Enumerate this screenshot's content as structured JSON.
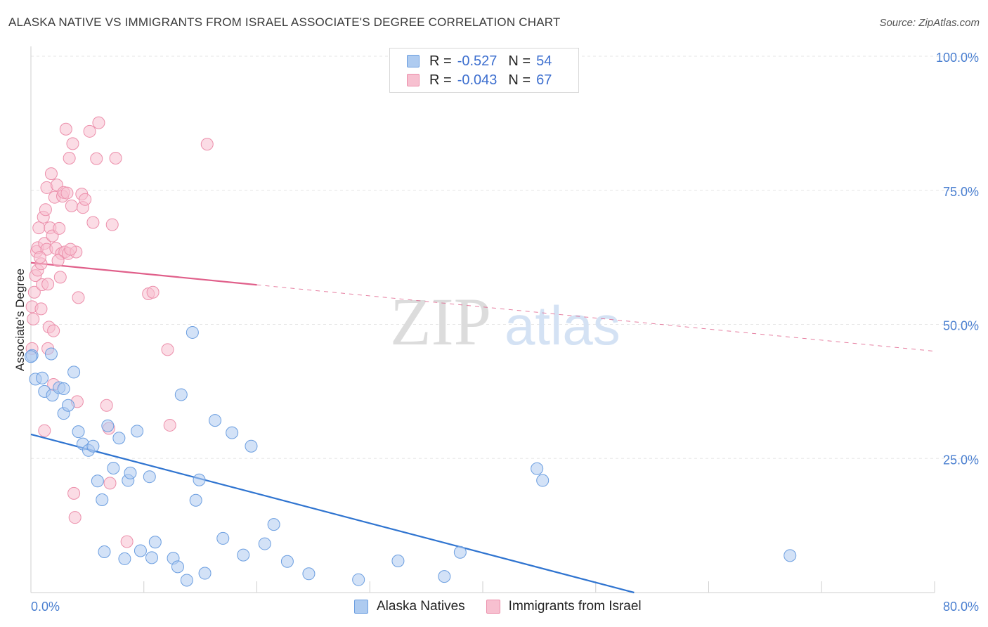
{
  "chart_title": "ALASKA NATIVE VS IMMIGRANTS FROM ISRAEL ASSOCIATE'S DEGREE CORRELATION CHART",
  "source": "Source: ZipAtlas.com",
  "watermark": {
    "zip": "ZIP",
    "atlas": "atlas"
  },
  "stats": [
    {
      "r_label": "R =",
      "r_value": "-0.527",
      "n_label": "N =",
      "n_value": "54"
    },
    {
      "r_label": "R =",
      "r_value": "-0.043",
      "n_label": "N =",
      "n_value": "67"
    }
  ],
  "colors": {
    "blue_fill": "#aecbf0",
    "blue_stroke": "#6b9ee0",
    "blue_line": "#2f74d0",
    "pink_fill": "#f7c0d0",
    "pink_stroke": "#ec8fab",
    "pink_line": "#e05f8a",
    "grid": "#e6e6e6",
    "tick_text": "#4a7fd0"
  },
  "chart_data": {
    "type": "scatter",
    "title": "ALASKA NATIVE VS IMMIGRANTS FROM ISRAEL ASSOCIATE'S DEGREE CORRELATION CHART",
    "xlabel": "",
    "ylabel": "Associate's Degree",
    "xlim": [
      0,
      80
    ],
    "ylim": [
      0,
      100
    ],
    "x_tick_labels": [
      "0.0%",
      "80.0%"
    ],
    "y_ticks": [
      {
        "value": 100,
        "label": "100.0%"
      },
      {
        "value": 75,
        "label": "75.0%"
      },
      {
        "value": 50,
        "label": "50.0%"
      },
      {
        "value": 25,
        "label": "25.0%"
      }
    ],
    "grid": true,
    "legend_position": "bottom-center",
    "series": [
      {
        "name": "Alaska Natives",
        "color": "blue",
        "trend": {
          "x": [
            0,
            53.4
          ],
          "y": [
            29.5,
            0
          ],
          "solid_to": 53.4
        },
        "points": [
          [
            0.1,
            44.2
          ],
          [
            0.4,
            39.8
          ],
          [
            1.0,
            40.0
          ],
          [
            1.2,
            37.5
          ],
          [
            1.8,
            44.5
          ],
          [
            1.9,
            36.8
          ],
          [
            2.5,
            38.2
          ],
          [
            2.9,
            33.4
          ],
          [
            2.9,
            38.0
          ],
          [
            3.3,
            34.9
          ],
          [
            3.8,
            41.1
          ],
          [
            4.2,
            30.0
          ],
          [
            4.6,
            27.7
          ],
          [
            5.1,
            26.5
          ],
          [
            5.5,
            27.3
          ],
          [
            5.9,
            20.8
          ],
          [
            6.3,
            17.3
          ],
          [
            6.5,
            7.6
          ],
          [
            6.8,
            31.1
          ],
          [
            7.3,
            23.2
          ],
          [
            7.8,
            28.8
          ],
          [
            8.3,
            6.3
          ],
          [
            8.6,
            20.9
          ],
          [
            8.8,
            22.3
          ],
          [
            9.4,
            30.1
          ],
          [
            9.7,
            7.8
          ],
          [
            10.5,
            21.6
          ],
          [
            10.7,
            6.5
          ],
          [
            11.0,
            9.4
          ],
          [
            12.6,
            6.4
          ],
          [
            13.0,
            4.8
          ],
          [
            13.3,
            36.9
          ],
          [
            13.8,
            2.3
          ],
          [
            14.3,
            48.5
          ],
          [
            14.6,
            17.2
          ],
          [
            14.9,
            21.0
          ],
          [
            15.4,
            3.6
          ],
          [
            16.3,
            32.1
          ],
          [
            17.0,
            10.1
          ],
          [
            17.8,
            29.8
          ],
          [
            18.8,
            7.0
          ],
          [
            19.5,
            27.3
          ],
          [
            20.7,
            9.1
          ],
          [
            21.5,
            12.7
          ],
          [
            22.7,
            5.8
          ],
          [
            24.6,
            3.5
          ],
          [
            29.0,
            2.4
          ],
          [
            32.5,
            5.9
          ],
          [
            36.6,
            3.0
          ],
          [
            38.0,
            7.5
          ],
          [
            44.8,
            23.1
          ],
          [
            45.3,
            20.9
          ],
          [
            67.2,
            6.9
          ],
          [
            0.0,
            44.0
          ]
        ]
      },
      {
        "name": "Immigrants from Israel",
        "color": "pink",
        "trend": {
          "x": [
            0,
            80
          ],
          "y": [
            61.5,
            45.0
          ],
          "solid_to": 20.0
        },
        "points": [
          [
            0.1,
            53.3
          ],
          [
            0.2,
            51.0
          ],
          [
            0.3,
            56.0
          ],
          [
            0.4,
            59.1
          ],
          [
            0.5,
            63.6
          ],
          [
            0.6,
            64.3
          ],
          [
            0.6,
            60.1
          ],
          [
            0.7,
            68.0
          ],
          [
            0.9,
            61.3
          ],
          [
            0.9,
            52.9
          ],
          [
            1.0,
            57.4
          ],
          [
            1.1,
            70.0
          ],
          [
            1.2,
            65.1
          ],
          [
            1.3,
            71.4
          ],
          [
            1.4,
            75.5
          ],
          [
            1.4,
            64.0
          ],
          [
            1.5,
            57.5
          ],
          [
            1.6,
            49.5
          ],
          [
            1.7,
            68.0
          ],
          [
            1.8,
            78.1
          ],
          [
            1.9,
            66.5
          ],
          [
            2.0,
            38.8
          ],
          [
            2.0,
            48.8
          ],
          [
            2.1,
            73.7
          ],
          [
            2.2,
            64.2
          ],
          [
            2.3,
            76.0
          ],
          [
            2.5,
            67.9
          ],
          [
            2.6,
            58.8
          ],
          [
            2.7,
            63.2
          ],
          [
            2.8,
            73.9
          ],
          [
            2.9,
            74.6
          ],
          [
            3.0,
            63.5
          ],
          [
            3.1,
            86.4
          ],
          [
            3.2,
            74.5
          ],
          [
            3.3,
            63.2
          ],
          [
            3.4,
            81.0
          ],
          [
            3.6,
            72.1
          ],
          [
            3.7,
            83.7
          ],
          [
            3.8,
            18.5
          ],
          [
            3.9,
            14.0
          ],
          [
            4.0,
            63.5
          ],
          [
            4.1,
            35.6
          ],
          [
            4.2,
            55.0
          ],
          [
            4.5,
            74.3
          ],
          [
            4.6,
            71.8
          ],
          [
            4.8,
            73.3
          ],
          [
            5.2,
            86.0
          ],
          [
            5.5,
            69.0
          ],
          [
            5.8,
            80.9
          ],
          [
            6.0,
            87.6
          ],
          [
            6.7,
            34.9
          ],
          [
            6.9,
            30.6
          ],
          [
            7.0,
            20.4
          ],
          [
            7.2,
            68.6
          ],
          [
            7.5,
            81.0
          ],
          [
            8.5,
            9.5
          ],
          [
            10.4,
            55.7
          ],
          [
            10.8,
            56.0
          ],
          [
            12.1,
            45.3
          ],
          [
            12.3,
            31.2
          ],
          [
            15.6,
            83.6
          ],
          [
            1.2,
            30.2
          ],
          [
            0.1,
            45.5
          ],
          [
            2.4,
            61.9
          ],
          [
            1.5,
            45.5
          ],
          [
            0.8,
            62.5
          ],
          [
            3.5,
            64.0
          ]
        ]
      }
    ]
  },
  "legend": [
    {
      "label": "Alaska Natives"
    },
    {
      "label": "Immigrants from Israel"
    }
  ]
}
